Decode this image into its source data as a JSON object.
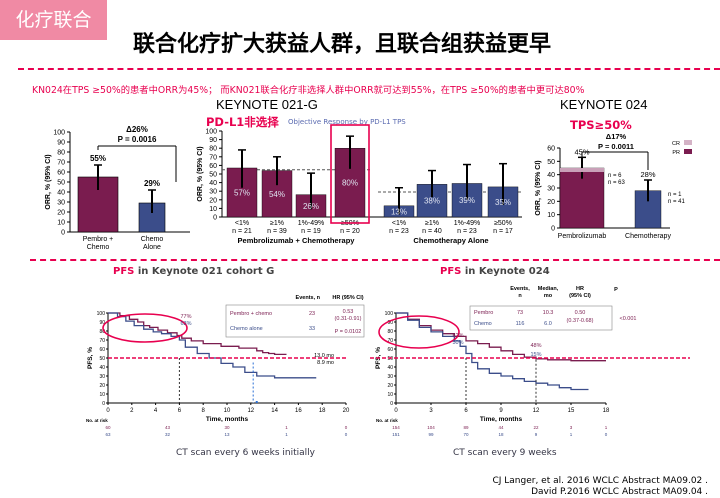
{
  "header": {
    "tag": "化疗联合",
    "title": "联合化疗扩大获益人群，且联合组获益更早",
    "subtitle": "KN024在TPS ≥50%的患者中ORR为45%； 而KN021联合化疗非选择人群中ORR就可达到55%，在TPS ≥50%的患者中更可达80%"
  },
  "colors": {
    "pembro": "#7a1c4f",
    "chemo": "#3b4d8a",
    "accent": "#e8004f",
    "tag_bg": "#f08aa4"
  },
  "panels": {
    "kn021_overall": {},
    "kn021_pdl1": {
      "heading": "KEYNOTE 021-G",
      "sub": "PD-L1非选择",
      "faint_title": "Objective Response by PD-L1 TPS"
    },
    "kn024": {
      "heading": "KEYNOTE 024",
      "sub": "TPS≥50%"
    },
    "km021": {
      "title_red": "PFS",
      "title_rest": " in Keynote 021 cohort G",
      "scan": "CT scan every 6 weeks initially"
    },
    "km024": {
      "title_red": "PFS",
      "title_rest": " in Keynote 024",
      "scan": "CT scan every 9 weeks"
    }
  },
  "chart_data": [
    {
      "type": "bar",
      "ylabel": "ORR, % (95% CI)",
      "ylim": [
        0,
        100
      ],
      "yticks": [
        0,
        10,
        20,
        30,
        40,
        50,
        60,
        70,
        80,
        90,
        100
      ],
      "categories": [
        "Pembro + Chemo",
        "Chemo Alone"
      ],
      "values": [
        55,
        29
      ],
      "value_labels": [
        "55%",
        "29%"
      ],
      "ci": [
        [
          42,
          67
        ],
        [
          19,
          42
        ]
      ],
      "annotation": {
        "delta": "Δ26%",
        "p": "P = 0.0016"
      }
    },
    {
      "type": "bar",
      "ylabel": "ORR, % (95% CI)",
      "ylim": [
        0,
        100
      ],
      "yticks": [
        0,
        10,
        20,
        30,
        40,
        50,
        60,
        70,
        80,
        90,
        100
      ],
      "groups": [
        {
          "label": "Pembrolizumab + Chemotherapy",
          "categories": [
            "<1%",
            "≥1%",
            "1%-49%",
            "≥50%"
          ],
          "n": [
            "n = 21",
            "n = 39",
            "n = 19",
            "n = 20"
          ],
          "values": [
            57,
            54,
            26,
            80
          ],
          "value_labels": [
            "57%",
            "54%",
            "26%",
            "80%"
          ],
          "ci": [
            [
              34,
              78
            ],
            [
              37,
              70
            ],
            [
              9,
              51
            ],
            [
              56,
              94
            ]
          ]
        },
        {
          "label": "Chemotherapy Alone",
          "categories": [
            "<1%",
            "≥1%",
            "1%-49%",
            "≥50%"
          ],
          "n": [
            "n = 23",
            "n = 40",
            "n = 23",
            "n = 17"
          ],
          "values": [
            13,
            38,
            39,
            35
          ],
          "value_labels": [
            "13%",
            "38%",
            "39%",
            "35%"
          ],
          "ci": [
            [
              3,
              34
            ],
            [
              23,
              54
            ],
            [
              20,
              61
            ],
            [
              14,
              62
            ]
          ]
        }
      ]
    },
    {
      "type": "bar",
      "ylabel": "ORR, % (95% CI)",
      "ylim": [
        0,
        60
      ],
      "yticks": [
        0,
        10,
        20,
        30,
        40,
        50,
        60
      ],
      "categories": [
        "Pembrolizumab",
        "Chemotherapy"
      ],
      "values": [
        45,
        28
      ],
      "value_labels": [
        "45%",
        "28%"
      ],
      "ci": [
        [
          37,
          53
        ],
        [
          20,
          36
        ]
      ],
      "annotation": {
        "delta": "Δ17%",
        "p": "P = 0.0011"
      },
      "legend": [
        "CR",
        "PR"
      ],
      "counts": [
        [
          "n = 6",
          "n = 63"
        ],
        [
          "n = 1",
          "n = 41"
        ]
      ]
    },
    {
      "type": "line",
      "xlabel": "Time, months",
      "ylabel": "PFS, %",
      "xlim": [
        0,
        20
      ],
      "ylim": [
        0,
        100
      ],
      "xticks": [
        0,
        2,
        4,
        6,
        8,
        10,
        12,
        14,
        16,
        18,
        20
      ],
      "yticks": [
        0,
        10,
        20,
        30,
        40,
        50,
        60,
        70,
        80,
        90,
        100
      ],
      "series": [
        {
          "name": "Pembro + chemo",
          "events": "23",
          "hr": "0.53",
          "ci": "(0.31-0.91)",
          "x": [
            0,
            1,
            1.8,
            2.5,
            3,
            3.5,
            4.2,
            5,
            5.8,
            6.2,
            7,
            8,
            9.5,
            11,
            12.5,
            13,
            13.5,
            14,
            15
          ],
          "y": [
            100,
            97,
            93,
            90,
            86,
            84,
            81,
            78,
            75,
            72,
            69,
            66,
            63,
            61,
            58,
            56,
            55,
            54,
            54
          ]
        },
        {
          "name": "Chemo alone",
          "events": "33",
          "x": [
            0,
            0.8,
            1.5,
            2.2,
            3,
            3.8,
            4.5,
            5.3,
            6,
            6.5,
            7.5,
            8.5,
            9.5,
            10.5,
            11.5,
            12.5,
            14,
            15.5,
            17.5
          ],
          "y": [
            100,
            96,
            91,
            86,
            82,
            79,
            77,
            74,
            70,
            62,
            55,
            50,
            44,
            40,
            34,
            30,
            28,
            28,
            28
          ]
        }
      ],
      "p_value": "P = 0.0102",
      "medians": [
        "13.0 mo",
        "8.9 mo"
      ],
      "landmark_labels": [
        "77%",
        "63%"
      ],
      "legend_header": [
        "Events, n",
        "HR (95% CI)"
      ],
      "at_risk": {
        "label": "No. at risk",
        "rows": [
          [
            "60",
            "43",
            "30",
            "1",
            "0"
          ],
          [
            "63",
            "32",
            "13",
            "1",
            "0"
          ]
        ]
      }
    },
    {
      "type": "line",
      "xlabel": "Time, months",
      "ylabel": "PFS, %",
      "xlim": [
        0,
        18
      ],
      "ylim": [
        0,
        100
      ],
      "xticks": [
        0,
        3,
        6,
        9,
        12,
        15,
        18
      ],
      "yticks": [
        0,
        10,
        20,
        30,
        40,
        50,
        60,
        70,
        80,
        90,
        100
      ],
      "series": [
        {
          "name": "Pembro",
          "events": "73",
          "median": "10.3",
          "hr": "0.50",
          "ci": "(0.37-0.68)",
          "x": [
            0,
            1,
            2,
            3,
            4,
            5,
            6,
            7,
            8,
            9,
            10,
            11,
            12,
            13,
            14,
            15,
            16,
            17,
            18
          ],
          "y": [
            100,
            93,
            86,
            81,
            77,
            74,
            69,
            66,
            62,
            58,
            54,
            51,
            49,
            48,
            48,
            47,
            47,
            47,
            47
          ]
        },
        {
          "name": "Chemo",
          "events": "116",
          "median": "6.0",
          "x": [
            0,
            1,
            2,
            3,
            4,
            5,
            5.5,
            6,
            6.5,
            7,
            8,
            9,
            10,
            11,
            12,
            13,
            14,
            15,
            16.5
          ],
          "y": [
            100,
            92,
            84,
            79,
            74,
            69,
            63,
            55,
            45,
            38,
            33,
            30,
            27,
            24,
            22,
            20,
            17,
            15,
            15
          ]
        }
      ],
      "p_value": "<0.001",
      "landmark_labels": [
        "62%",
        "50%",
        "48%",
        "15%"
      ],
      "legend_header": [
        "Events, n",
        "Median, mo",
        "HR (95% CI)",
        "P"
      ],
      "at_risk": {
        "label": "No. at risk",
        "rows": [
          [
            "154",
            "104",
            "89",
            "44",
            "22",
            "3",
            "1"
          ],
          [
            "151",
            "99",
            "70",
            "18",
            "9",
            "1",
            "0"
          ]
        ]
      }
    }
  ],
  "citations": [
    "CJ Langer, et al. 2016 WCLC Abstract  MA09.02 .",
    "David P.2016 WCLC Abstract  MA09.04 ."
  ]
}
